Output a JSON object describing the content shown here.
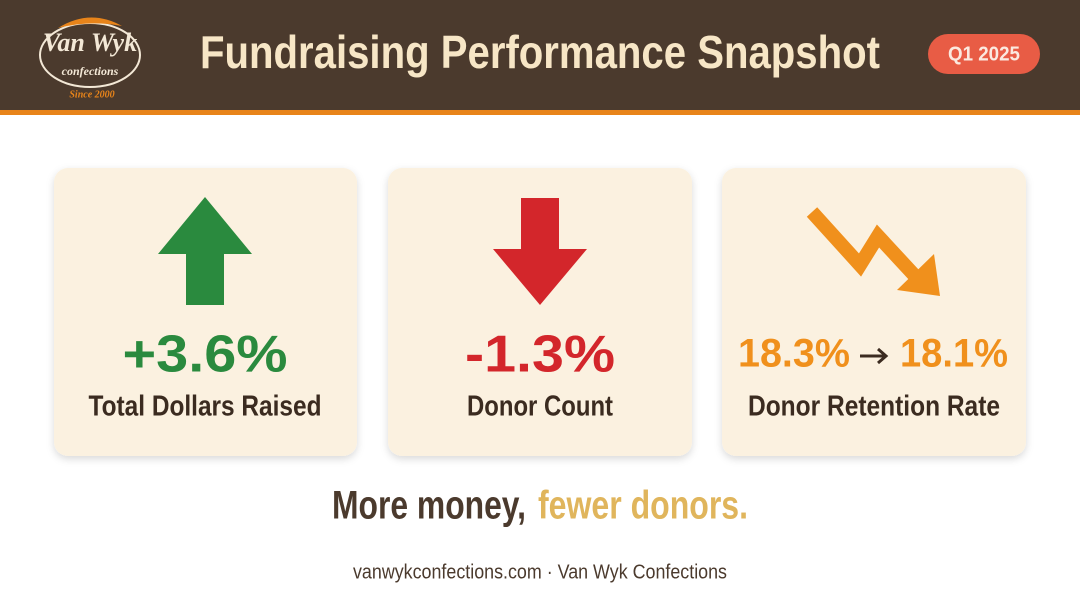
{
  "header": {
    "logo": {
      "name": "Van Wyk",
      "subtitle": "confections",
      "since": "Since 2000"
    },
    "title": "Fundraising Performance Snapshot",
    "badge": "Q1 2025"
  },
  "cards": [
    {
      "value": "+3.6%",
      "label": "Total Dollars Raised"
    },
    {
      "value": "-1.3%",
      "label": "Donor Count"
    },
    {
      "from": "18.3%",
      "to": "18.1%",
      "label": "Donor Retention Rate"
    }
  ],
  "tagline": {
    "lead": "More money,",
    "emphasis": "fewer donors."
  },
  "footer": "vanwykconfections.com · Van Wyk Confections"
}
